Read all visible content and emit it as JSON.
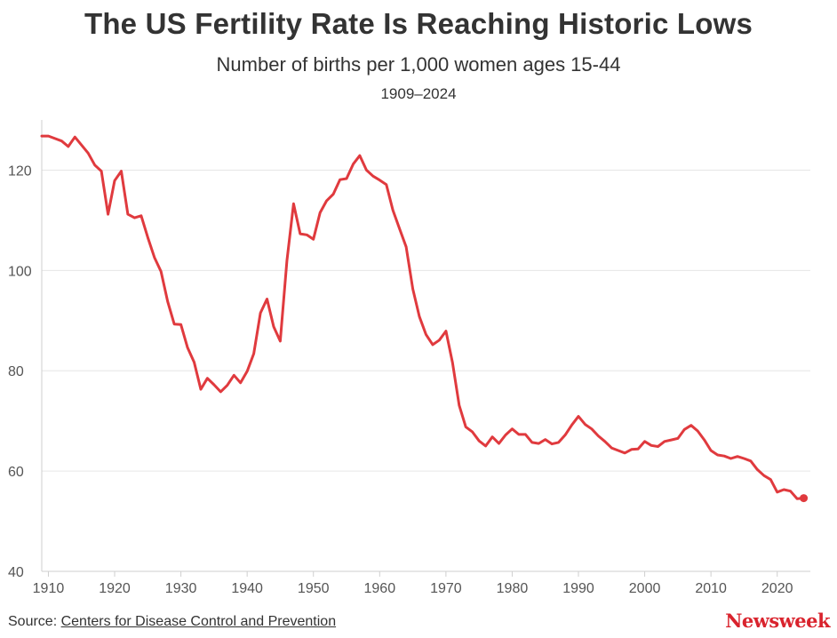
{
  "header": {
    "title": "The US Fertility Rate Is Reaching Historic Lows",
    "subtitle": "Number of births per 1,000 women ages 15-44",
    "range": "1909–2024"
  },
  "footer": {
    "source_prefix": "Source: ",
    "source_link": "Centers for Disease Control and Prevention",
    "brand": "Newsweek"
  },
  "colors": {
    "line": "#e03a3e",
    "grid": "#e6e6e6",
    "axis": "#cfcfcf",
    "tick_text": "#555555"
  },
  "chart_data": {
    "type": "line",
    "title": "The US Fertility Rate Is Reaching Historic Lows",
    "subtitle": "Number of births per 1,000 women ages 15-44",
    "xlabel": "",
    "ylabel": "",
    "xlim": [
      1909,
      2025
    ],
    "ylim": [
      40,
      130
    ],
    "xticks": [
      1910,
      1920,
      1930,
      1940,
      1950,
      1960,
      1970,
      1980,
      1990,
      2000,
      2010,
      2020
    ],
    "yticks": [
      40,
      60,
      80,
      100,
      120
    ],
    "grid": "horizontal",
    "end_marker": true,
    "series": [
      {
        "x": [
          1909,
          1910,
          1911,
          1912,
          1913,
          1914,
          1915,
          1916,
          1917,
          1918,
          1919,
          1920,
          1921,
          1922,
          1923,
          1924,
          1925,
          1926,
          1927,
          1928,
          1929,
          1930,
          1931,
          1932,
          1933,
          1934,
          1935,
          1936,
          1937,
          1938,
          1939,
          1940,
          1941,
          1942,
          1943,
          1944,
          1945,
          1946,
          1947,
          1948,
          1949,
          1950,
          1951,
          1952,
          1953,
          1954,
          1955,
          1956,
          1957,
          1958,
          1959,
          1960,
          1961,
          1962,
          1963,
          1964,
          1965,
          1966,
          1967,
          1968,
          1969,
          1970,
          1971,
          1972,
          1973,
          1974,
          1975,
          1976,
          1977,
          1978,
          1979,
          1980,
          1981,
          1982,
          1983,
          1984,
          1985,
          1986,
          1987,
          1988,
          1989,
          1990,
          1991,
          1992,
          1993,
          1994,
          1995,
          1996,
          1997,
          1998,
          1999,
          2000,
          2001,
          2002,
          2003,
          2004,
          2005,
          2006,
          2007,
          2008,
          2009,
          2010,
          2011,
          2012,
          2013,
          2014,
          2015,
          2016,
          2017,
          2018,
          2019,
          2020,
          2021,
          2022,
          2023,
          2024
        ],
        "values": [
          126.8,
          126.8,
          126.3,
          125.8,
          124.7,
          126.6,
          125.0,
          123.4,
          121.0,
          119.8,
          111.2,
          117.9,
          119.8,
          111.2,
          110.5,
          110.9,
          106.6,
          102.6,
          99.8,
          93.8,
          89.3,
          89.2,
          84.6,
          81.7,
          76.3,
          78.5,
          77.2,
          75.8,
          77.1,
          79.1,
          77.6,
          79.9,
          83.4,
          91.5,
          94.3,
          88.8,
          85.9,
          101.9,
          113.3,
          107.3,
          107.1,
          106.2,
          111.5,
          113.9,
          115.2,
          118.1,
          118.3,
          121.2,
          122.9,
          120.0,
          118.8,
          118.0,
          117.1,
          112.0,
          108.3,
          104.7,
          96.3,
          90.8,
          87.2,
          85.2,
          86.1,
          87.9,
          81.6,
          73.1,
          68.8,
          67.8,
          66.0,
          65.0,
          66.8,
          65.5,
          67.2,
          68.4,
          67.3,
          67.3,
          65.7,
          65.5,
          66.3,
          65.4,
          65.7,
          67.2,
          69.2,
          70.9,
          69.3,
          68.4,
          67.0,
          65.9,
          64.6,
          64.1,
          63.6,
          64.3,
          64.4,
          65.9,
          65.1,
          64.9,
          65.9,
          66.2,
          66.5,
          68.3,
          69.1,
          68.0,
          66.2,
          64.1,
          63.2,
          63.0,
          62.5,
          62.9,
          62.5,
          62.0,
          60.3,
          59.1,
          58.3,
          55.8,
          56.3,
          56.0,
          54.5,
          54.6
        ]
      }
    ]
  }
}
